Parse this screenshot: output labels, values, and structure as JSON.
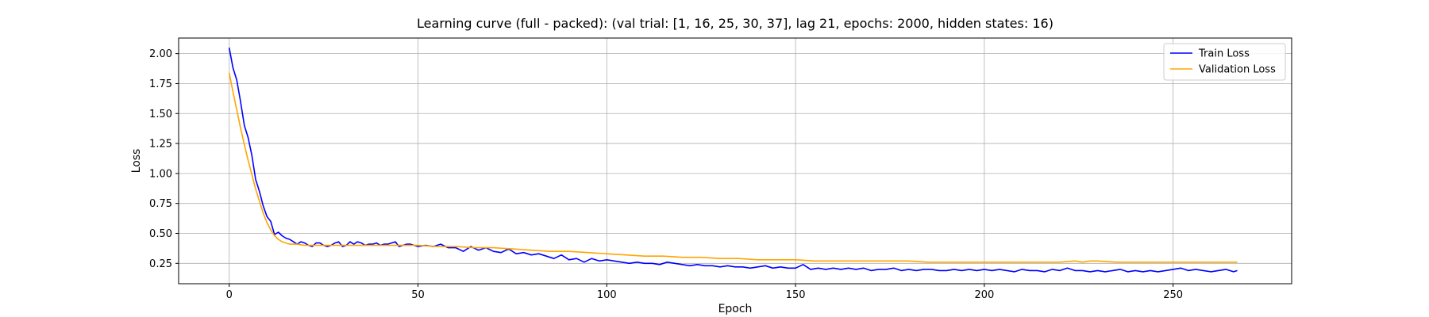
{
  "chart_data": {
    "type": "line",
    "title": "Learning curve (full - packed): (val trial: [1, 16, 25, 30, 37], lag 21, epochs: 2000, hidden states: 16)",
    "xlabel": "Epoch",
    "ylabel": "Loss",
    "xlim": [
      -13.4,
      281.4
    ],
    "ylim": [
      0.08,
      2.13
    ],
    "xticks": [
      0,
      50,
      100,
      150,
      200,
      250
    ],
    "xtick_labels": [
      "0",
      "50",
      "100",
      "150",
      "200",
      "250"
    ],
    "yticks": [
      0.25,
      0.5,
      0.75,
      1.0,
      1.25,
      1.5,
      1.75,
      2.0
    ],
    "ytick_labels": [
      "0.25",
      "0.50",
      "0.75",
      "1.00",
      "1.25",
      "1.50",
      "1.75",
      "2.00"
    ],
    "grid": true,
    "legend_position": "top-right",
    "colors": {
      "train": "#0000ff",
      "validation": "#ffa500"
    },
    "series": [
      {
        "name": "Train Loss",
        "color": "#0000ff",
        "points": [
          [
            0,
            2.05
          ],
          [
            1,
            1.88
          ],
          [
            2,
            1.78
          ],
          [
            3,
            1.6
          ],
          [
            4,
            1.4
          ],
          [
            5,
            1.3
          ],
          [
            6,
            1.15
          ],
          [
            7,
            0.95
          ],
          [
            8,
            0.85
          ],
          [
            9,
            0.73
          ],
          [
            10,
            0.64
          ],
          [
            11,
            0.6
          ],
          [
            12,
            0.49
          ],
          [
            13,
            0.51
          ],
          [
            14,
            0.48
          ],
          [
            15,
            0.46
          ],
          [
            16,
            0.45
          ],
          [
            17,
            0.43
          ],
          [
            18,
            0.41
          ],
          [
            19,
            0.43
          ],
          [
            20,
            0.42
          ],
          [
            21,
            0.4
          ],
          [
            22,
            0.39
          ],
          [
            23,
            0.42
          ],
          [
            24,
            0.42
          ],
          [
            25,
            0.4
          ],
          [
            26,
            0.39
          ],
          [
            27,
            0.4
          ],
          [
            28,
            0.42
          ],
          [
            29,
            0.43
          ],
          [
            30,
            0.39
          ],
          [
            31,
            0.4
          ],
          [
            32,
            0.43
          ],
          [
            33,
            0.41
          ],
          [
            34,
            0.43
          ],
          [
            35,
            0.42
          ],
          [
            36,
            0.4
          ],
          [
            37,
            0.41
          ],
          [
            38,
            0.41
          ],
          [
            39,
            0.42
          ],
          [
            40,
            0.4
          ],
          [
            41,
            0.41
          ],
          [
            42,
            0.41
          ],
          [
            43,
            0.42
          ],
          [
            44,
            0.43
          ],
          [
            45,
            0.39
          ],
          [
            46,
            0.4
          ],
          [
            47,
            0.41
          ],
          [
            48,
            0.41
          ],
          [
            49,
            0.4
          ],
          [
            50,
            0.39
          ],
          [
            52,
            0.4
          ],
          [
            54,
            0.39
          ],
          [
            56,
            0.41
          ],
          [
            58,
            0.38
          ],
          [
            60,
            0.38
          ],
          [
            62,
            0.35
          ],
          [
            64,
            0.39
          ],
          [
            66,
            0.36
          ],
          [
            68,
            0.38
          ],
          [
            70,
            0.35
          ],
          [
            72,
            0.34
          ],
          [
            74,
            0.37
          ],
          [
            76,
            0.33
          ],
          [
            78,
            0.34
          ],
          [
            80,
            0.32
          ],
          [
            82,
            0.33
          ],
          [
            84,
            0.31
          ],
          [
            86,
            0.29
          ],
          [
            88,
            0.32
          ],
          [
            90,
            0.28
          ],
          [
            92,
            0.29
          ],
          [
            94,
            0.26
          ],
          [
            96,
            0.29
          ],
          [
            98,
            0.27
          ],
          [
            100,
            0.28
          ],
          [
            102,
            0.27
          ],
          [
            104,
            0.26
          ],
          [
            106,
            0.25
          ],
          [
            108,
            0.26
          ],
          [
            110,
            0.25
          ],
          [
            112,
            0.25
          ],
          [
            114,
            0.24
          ],
          [
            116,
            0.26
          ],
          [
            118,
            0.25
          ],
          [
            120,
            0.24
          ],
          [
            122,
            0.23
          ],
          [
            124,
            0.24
          ],
          [
            126,
            0.23
          ],
          [
            128,
            0.23
          ],
          [
            130,
            0.22
          ],
          [
            132,
            0.23
          ],
          [
            134,
            0.22
          ],
          [
            136,
            0.22
          ],
          [
            138,
            0.21
          ],
          [
            140,
            0.22
          ],
          [
            142,
            0.23
          ],
          [
            144,
            0.21
          ],
          [
            146,
            0.22
          ],
          [
            148,
            0.21
          ],
          [
            150,
            0.21
          ],
          [
            152,
            0.24
          ],
          [
            154,
            0.2
          ],
          [
            156,
            0.21
          ],
          [
            158,
            0.2
          ],
          [
            160,
            0.21
          ],
          [
            162,
            0.2
          ],
          [
            164,
            0.21
          ],
          [
            166,
            0.2
          ],
          [
            168,
            0.21
          ],
          [
            170,
            0.19
          ],
          [
            172,
            0.2
          ],
          [
            174,
            0.2
          ],
          [
            176,
            0.21
          ],
          [
            178,
            0.19
          ],
          [
            180,
            0.2
          ],
          [
            182,
            0.19
          ],
          [
            184,
            0.2
          ],
          [
            186,
            0.2
          ],
          [
            188,
            0.19
          ],
          [
            190,
            0.19
          ],
          [
            192,
            0.2
          ],
          [
            194,
            0.19
          ],
          [
            196,
            0.2
          ],
          [
            198,
            0.19
          ],
          [
            200,
            0.2
          ],
          [
            202,
            0.19
          ],
          [
            204,
            0.2
          ],
          [
            206,
            0.19
          ],
          [
            208,
            0.18
          ],
          [
            210,
            0.2
          ],
          [
            212,
            0.19
          ],
          [
            214,
            0.19
          ],
          [
            216,
            0.18
          ],
          [
            218,
            0.2
          ],
          [
            220,
            0.19
          ],
          [
            222,
            0.21
          ],
          [
            224,
            0.19
          ],
          [
            226,
            0.19
          ],
          [
            228,
            0.18
          ],
          [
            230,
            0.19
          ],
          [
            232,
            0.18
          ],
          [
            234,
            0.19
          ],
          [
            236,
            0.2
          ],
          [
            238,
            0.18
          ],
          [
            240,
            0.19
          ],
          [
            242,
            0.18
          ],
          [
            244,
            0.19
          ],
          [
            246,
            0.18
          ],
          [
            248,
            0.19
          ],
          [
            250,
            0.2
          ],
          [
            252,
            0.21
          ],
          [
            254,
            0.19
          ],
          [
            256,
            0.2
          ],
          [
            258,
            0.19
          ],
          [
            260,
            0.18
          ],
          [
            262,
            0.19
          ],
          [
            264,
            0.2
          ],
          [
            266,
            0.18
          ],
          [
            267,
            0.19
          ]
        ]
      },
      {
        "name": "Validation Loss",
        "color": "#ffa500",
        "points": [
          [
            0,
            1.84
          ],
          [
            1,
            1.68
          ],
          [
            2,
            1.53
          ],
          [
            3,
            1.38
          ],
          [
            4,
            1.24
          ],
          [
            5,
            1.11
          ],
          [
            6,
            0.99
          ],
          [
            7,
            0.87
          ],
          [
            8,
            0.77
          ],
          [
            9,
            0.67
          ],
          [
            10,
            0.59
          ],
          [
            11,
            0.53
          ],
          [
            12,
            0.48
          ],
          [
            13,
            0.45
          ],
          [
            14,
            0.43
          ],
          [
            15,
            0.42
          ],
          [
            16,
            0.41
          ],
          [
            17,
            0.41
          ],
          [
            18,
            0.41
          ],
          [
            20,
            0.4
          ],
          [
            25,
            0.4
          ],
          [
            30,
            0.4
          ],
          [
            35,
            0.4
          ],
          [
            40,
            0.4
          ],
          [
            45,
            0.4
          ],
          [
            50,
            0.4
          ],
          [
            55,
            0.39
          ],
          [
            60,
            0.39
          ],
          [
            65,
            0.38
          ],
          [
            70,
            0.38
          ],
          [
            75,
            0.37
          ],
          [
            80,
            0.36
          ],
          [
            85,
            0.35
          ],
          [
            90,
            0.35
          ],
          [
            95,
            0.34
          ],
          [
            100,
            0.33
          ],
          [
            105,
            0.32
          ],
          [
            110,
            0.31
          ],
          [
            115,
            0.31
          ],
          [
            120,
            0.3
          ],
          [
            125,
            0.3
          ],
          [
            130,
            0.29
          ],
          [
            135,
            0.29
          ],
          [
            140,
            0.28
          ],
          [
            145,
            0.28
          ],
          [
            150,
            0.28
          ],
          [
            155,
            0.27
          ],
          [
            160,
            0.27
          ],
          [
            165,
            0.27
          ],
          [
            170,
            0.27
          ],
          [
            175,
            0.27
          ],
          [
            180,
            0.27
          ],
          [
            185,
            0.26
          ],
          [
            190,
            0.26
          ],
          [
            195,
            0.26
          ],
          [
            200,
            0.26
          ],
          [
            205,
            0.26
          ],
          [
            210,
            0.26
          ],
          [
            215,
            0.26
          ],
          [
            220,
            0.26
          ],
          [
            224,
            0.27
          ],
          [
            226,
            0.26
          ],
          [
            228,
            0.27
          ],
          [
            230,
            0.27
          ],
          [
            235,
            0.26
          ],
          [
            240,
            0.26
          ],
          [
            245,
            0.26
          ],
          [
            250,
            0.26
          ],
          [
            255,
            0.26
          ],
          [
            260,
            0.26
          ],
          [
            267,
            0.26
          ]
        ]
      }
    ]
  }
}
